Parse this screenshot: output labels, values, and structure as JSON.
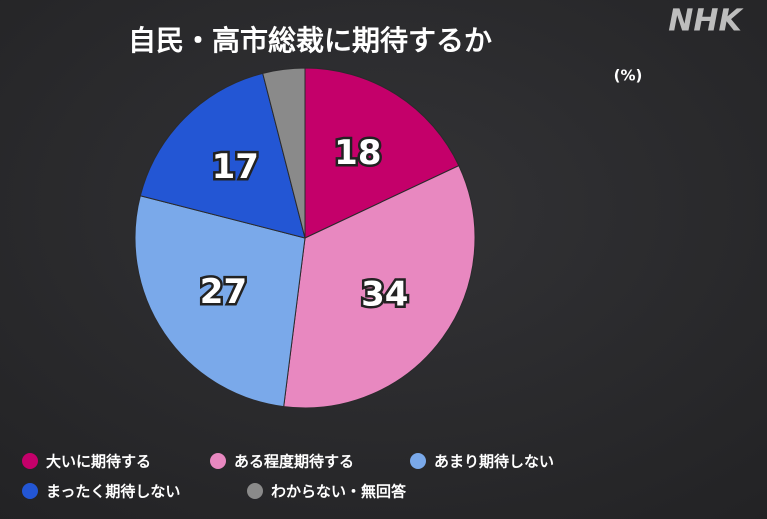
{
  "logo": "NHK",
  "chart_data": {
    "type": "pie",
    "title": "自民・高市総裁に期待するか",
    "unit_label": "(%)",
    "categories": [
      "大いに期待する",
      "ある程度期待する",
      "あまり期待しない",
      "まったく期待しない",
      "わからない・無回答"
    ],
    "values": [
      18,
      34,
      27,
      17,
      4
    ],
    "colors": [
      "#c4006a",
      "#e888c0",
      "#7aa9ea",
      "#2356d4",
      "#8a8a8a"
    ],
    "legend": "bottom"
  }
}
